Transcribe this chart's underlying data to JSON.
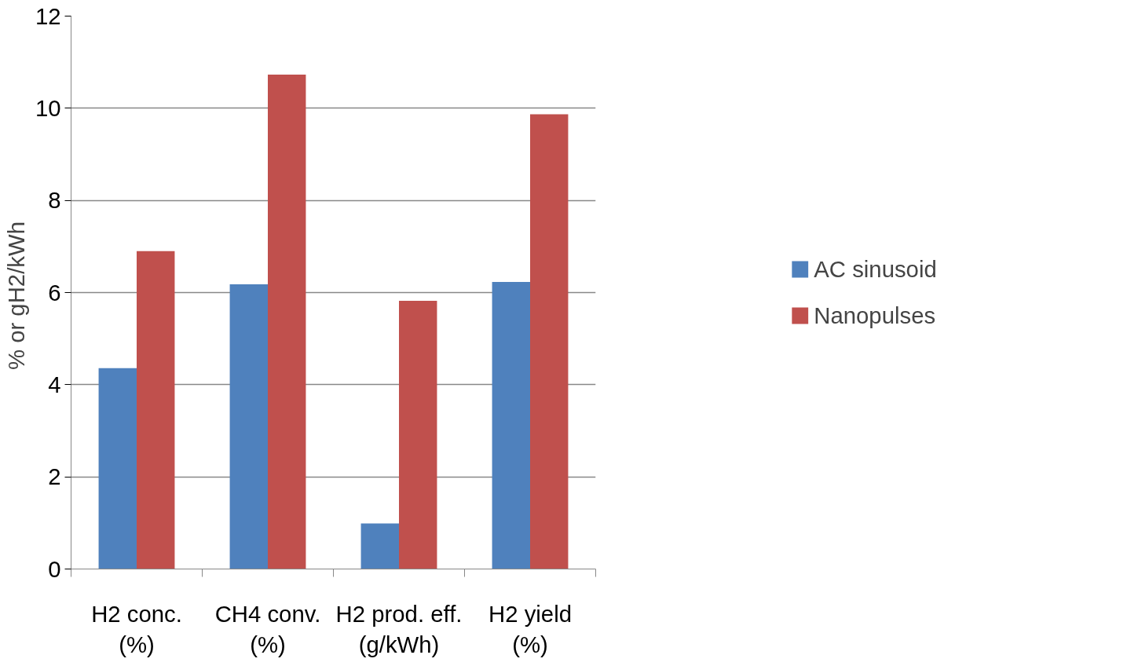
{
  "chart_data": {
    "type": "bar",
    "ylabel": "% or  gH2/kWh",
    "categories": [
      "H2 conc.\n(%)",
      "CH4 conv.\n(%)",
      "H2 prod. eff.\n(g/kWh)",
      "H2 yield\n(%)"
    ],
    "series": [
      {
        "name": "AC sinusoid",
        "color": "#4f81bd",
        "values": [
          4.36,
          6.18,
          0.99,
          6.23
        ]
      },
      {
        "name": "Nanopulses",
        "color": "#c0504d",
        "values": [
          6.9,
          10.73,
          5.82,
          9.87
        ]
      }
    ],
    "ylim": [
      0,
      12
    ],
    "yticks": [
      0,
      2,
      4,
      6,
      8,
      10,
      12
    ],
    "grid": "y",
    "legend": "right"
  }
}
